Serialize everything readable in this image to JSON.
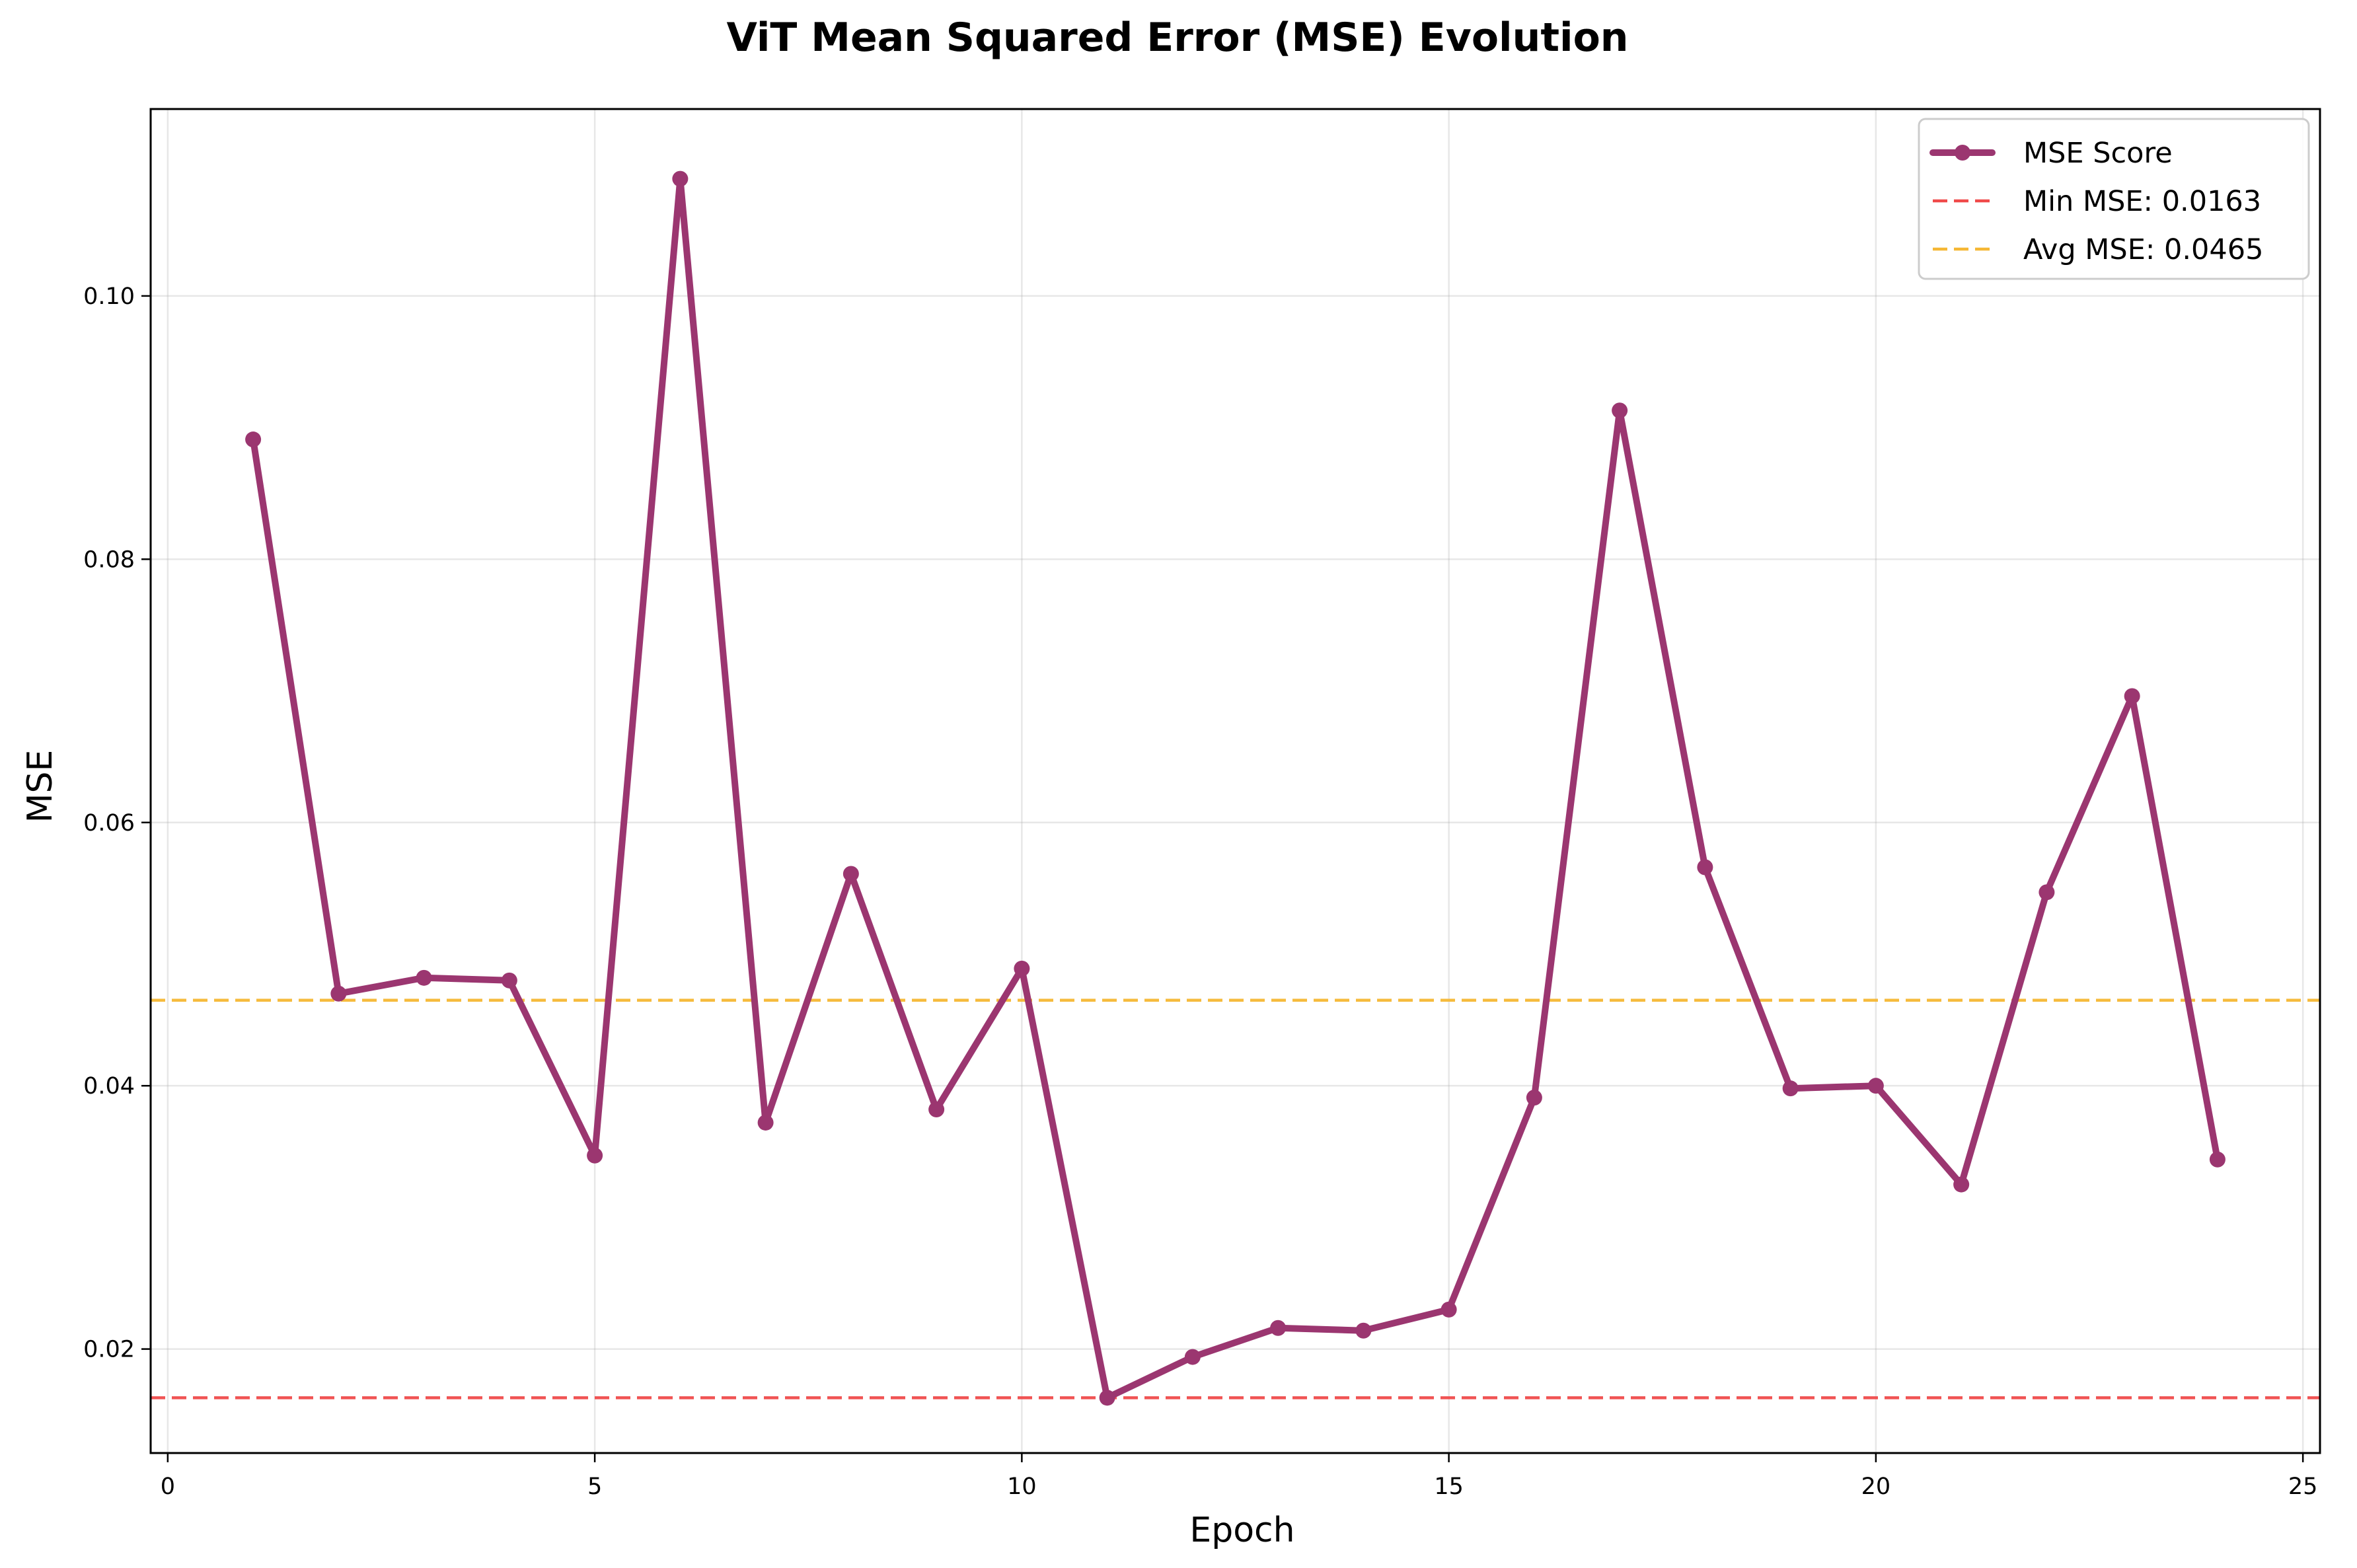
{
  "chart_data": {
    "type": "line",
    "title": "ViT Mean Squared Error (MSE) Evolution",
    "xlabel": "Epoch",
    "ylabel": "MSE",
    "xlim": [
      -0.2,
      25.2
    ],
    "ylim": [
      0.0121,
      0.1142
    ],
    "xticks": [
      0,
      5,
      10,
      15,
      20,
      25
    ],
    "xtick_labels": [
      "0",
      "5",
      "10",
      "15",
      "20",
      "25"
    ],
    "yticks": [
      0.02,
      0.04,
      0.06,
      0.08,
      0.1
    ],
    "ytick_labels": [
      "0.02",
      "0.04",
      "0.06",
      "0.08",
      "0.10"
    ],
    "grid": true,
    "legend_position": "top-right",
    "series": [
      {
        "name": "MSE Score",
        "color": "#9b3670",
        "marker": "circle",
        "x": [
          1,
          2,
          3,
          4,
          5,
          6,
          7,
          8,
          9,
          10,
          11,
          12,
          13,
          14,
          15,
          16,
          17,
          18,
          19,
          20,
          21,
          22,
          23,
          24
        ],
        "y": [
          0.0891,
          0.047,
          0.0482,
          0.048,
          0.0347,
          0.1089,
          0.0372,
          0.0561,
          0.0382,
          0.0489,
          0.0163,
          0.0194,
          0.0216,
          0.0214,
          0.023,
          0.0391,
          0.0913,
          0.0566,
          0.0398,
          0.04,
          0.0325,
          0.0547,
          0.0696,
          0.0344
        ]
      }
    ],
    "reference_lines": [
      {
        "name": "Min MSE: 0.0163",
        "value": 0.0163,
        "color": "#f04a4a",
        "style": "dashed"
      },
      {
        "name": "Avg MSE: 0.0465",
        "value": 0.0465,
        "color": "#f5b734",
        "style": "dashed"
      }
    ]
  }
}
